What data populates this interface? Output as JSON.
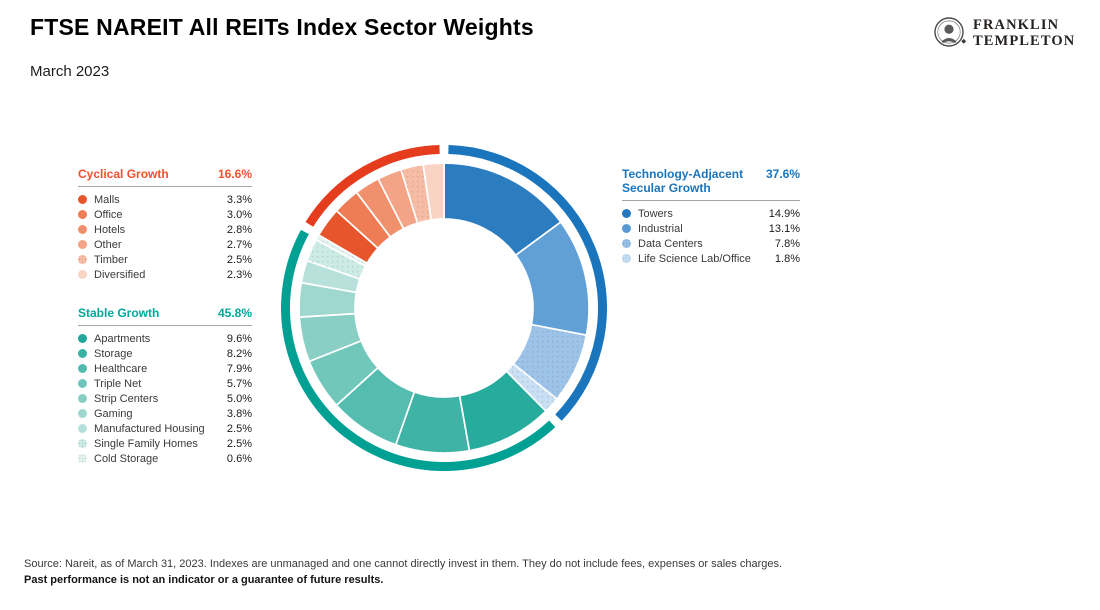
{
  "header": {
    "title": "FTSE NAREIT All REITs Index Sector Weights",
    "date": "March 2023"
  },
  "logo": {
    "line1": "FRANKLIN",
    "line2": "TEMPLETON"
  },
  "legend": {
    "cyclical": {
      "title": "Cyclical Growth",
      "pct": "16.6%",
      "color": "#F0512C",
      "items": [
        {
          "label": "Malls",
          "value": "3.3%",
          "color": "#E7552C",
          "dotted": false
        },
        {
          "label": "Office",
          "value": "3.0%",
          "color": "#EE7C55",
          "dotted": false
        },
        {
          "label": "Hotels",
          "value": "2.8%",
          "color": "#F0906C",
          "dotted": false
        },
        {
          "label": "Other",
          "value": "2.7%",
          "color": "#F3A487",
          "dotted": false
        },
        {
          "label": "Timber",
          "value": "2.5%",
          "color": "#F6BCA4",
          "dotted": true
        },
        {
          "label": "Diversified",
          "value": "2.3%",
          "color": "#F9D4C5",
          "dotted": false
        }
      ]
    },
    "stable": {
      "title": "Stable Growth",
      "pct": "45.8%",
      "color": "#00A79B",
      "items": [
        {
          "label": "Apartments",
          "value": "9.6%",
          "color": "#1FA79A",
          "dotted": false
        },
        {
          "label": "Storage",
          "value": "8.2%",
          "color": "#3BB1A4",
          "dotted": false
        },
        {
          "label": "Healthcare",
          "value": "7.9%",
          "color": "#52BAAE",
          "dotted": false
        },
        {
          "label": "Triple Net",
          "value": "5.7%",
          "color": "#6FC5BA",
          "dotted": false
        },
        {
          "label": "Strip Centers",
          "value": "5.0%",
          "color": "#86CEC4",
          "dotted": false
        },
        {
          "label": "Gaming",
          "value": "3.8%",
          "color": "#9DD7CE",
          "dotted": false
        },
        {
          "label": "Manufactured Housing",
          "value": "2.5%",
          "color": "#B5E0D9",
          "dotted": false
        },
        {
          "label": "Single Family Homes",
          "value": "2.5%",
          "color": "#CBEAE4",
          "dotted": true
        },
        {
          "label": "Cold Storage",
          "value": "0.6%",
          "color": "#E2F2EF",
          "dotted": true
        }
      ]
    },
    "tech": {
      "title": "Technology-Adjacent\nSecular Growth",
      "pct": "37.6%",
      "color": "#1B75BC",
      "items": [
        {
          "label": "Towers",
          "value": "14.9%",
          "color": "#2678BE",
          "dotted": false
        },
        {
          "label": "Industrial",
          "value": "13.1%",
          "color": "#5A98D2",
          "dotted": false
        },
        {
          "label": "Data Centers",
          "value": "7.8%",
          "color": "#97BFE6",
          "dotted": true
        },
        {
          "label": "Life Science Lab/Office",
          "value": "1.8%",
          "color": "#C3DCF2",
          "dotted": true
        }
      ]
    }
  },
  "chart_data": {
    "type": "donut",
    "title": "FTSE NAREIT All REITs Index Sector Weights",
    "start_angle_deg": 0,
    "direction": "clockwise",
    "legend_position": "left-and-right",
    "outer_ring_groups": [
      {
        "name": "Technology-Adjacent Secular Growth",
        "total": 37.6,
        "ring_color": "#1B75BC"
      },
      {
        "name": "Stable Growth",
        "total": 45.8,
        "ring_color": "#00A093"
      },
      {
        "name": "Cyclical Growth",
        "total": 16.6,
        "ring_color": "#E63C1E"
      }
    ],
    "segments": [
      {
        "label": "Towers",
        "value": 14.9,
        "color": "#2C7CC0",
        "dotted": false,
        "group": "Technology-Adjacent Secular Growth"
      },
      {
        "label": "Industrial",
        "value": 13.1,
        "color": "#61A0D7",
        "dotted": false,
        "group": "Technology-Adjacent Secular Growth"
      },
      {
        "label": "Data Centers",
        "value": 7.8,
        "color": "#9DC4E8",
        "dotted": true,
        "group": "Technology-Adjacent Secular Growth"
      },
      {
        "label": "Life Science Lab/Office",
        "value": 1.8,
        "color": "#C9DFF4",
        "dotted": true,
        "group": "Technology-Adjacent Secular Growth"
      },
      {
        "label": "Apartments",
        "value": 9.6,
        "color": "#27AB9D",
        "dotted": false,
        "group": "Stable Growth"
      },
      {
        "label": "Storage",
        "value": 8.2,
        "color": "#3FB3A6",
        "dotted": false,
        "group": "Stable Growth"
      },
      {
        "label": "Healthcare",
        "value": 7.9,
        "color": "#55BCB0",
        "dotted": false,
        "group": "Stable Growth"
      },
      {
        "label": "Triple Net",
        "value": 5.7,
        "color": "#72C7BB",
        "dotted": false,
        "group": "Stable Growth"
      },
      {
        "label": "Strip Centers",
        "value": 5.0,
        "color": "#89CFC5",
        "dotted": false,
        "group": "Stable Growth"
      },
      {
        "label": "Gaming",
        "value": 3.8,
        "color": "#A0D8CF",
        "dotted": false,
        "group": "Stable Growth"
      },
      {
        "label": "Manufactured Housing",
        "value": 2.5,
        "color": "#B7E1DA",
        "dotted": false,
        "group": "Stable Growth"
      },
      {
        "label": "Single Family Homes",
        "value": 2.5,
        "color": "#CDEBE5",
        "dotted": true,
        "group": "Stable Growth"
      },
      {
        "label": "Cold Storage",
        "value": 0.6,
        "color": "#E2F2EF",
        "dotted": true,
        "group": "Stable Growth"
      },
      {
        "label": "Malls",
        "value": 3.3,
        "color": "#E7552C",
        "dotted": false,
        "group": "Cyclical Growth"
      },
      {
        "label": "Office",
        "value": 3.0,
        "color": "#EE7C55",
        "dotted": false,
        "group": "Cyclical Growth"
      },
      {
        "label": "Hotels",
        "value": 2.8,
        "color": "#F0906C",
        "dotted": false,
        "group": "Cyclical Growth"
      },
      {
        "label": "Other",
        "value": 2.7,
        "color": "#F3A487",
        "dotted": false,
        "group": "Cyclical Growth"
      },
      {
        "label": "Timber",
        "value": 2.5,
        "color": "#F6BCA4",
        "dotted": true,
        "group": "Cyclical Growth"
      },
      {
        "label": "Diversified",
        "value": 2.3,
        "color": "#F9D4C5",
        "dotted": false,
        "group": "Cyclical Growth"
      }
    ]
  },
  "footer": {
    "line1": "Source: Nareit, as of March 31, 2023. Indexes are unmanaged and one cannot directly invest in them. They do not include fees, expenses or sales charges.",
    "line2": "Past performance is not an indicator or a guarantee of future results."
  }
}
